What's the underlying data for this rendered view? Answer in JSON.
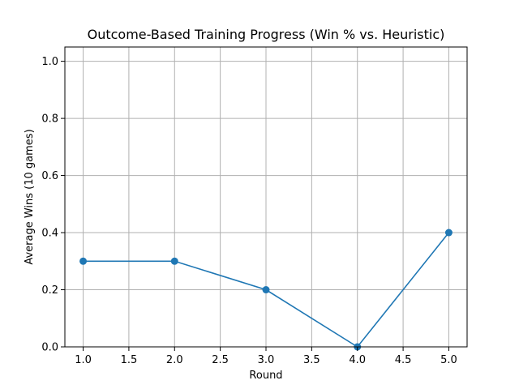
{
  "chart_data": {
    "type": "line",
    "title": "Outcome-Based Training Progress (Win % vs. Heuristic)",
    "xlabel": "Round",
    "ylabel": "Average Wins (10 games)",
    "x": [
      1,
      2,
      3,
      4,
      5
    ],
    "series": [
      {
        "values": [
          0.3,
          0.3,
          0.2,
          0.0,
          0.4
        ],
        "color": "#1f77b4",
        "marker": "circle"
      }
    ],
    "xlim": [
      0.8,
      5.2
    ],
    "ylim": [
      0,
      1.05
    ],
    "xticks": [
      "1.0",
      "1.5",
      "2.0",
      "2.5",
      "3.0",
      "3.5",
      "4.0",
      "4.5",
      "5.0"
    ],
    "yticks": [
      "0.0",
      "0.2",
      "0.4",
      "0.6",
      "0.8",
      "1.0"
    ],
    "grid": true,
    "grid_color": "#b0b0b0"
  }
}
